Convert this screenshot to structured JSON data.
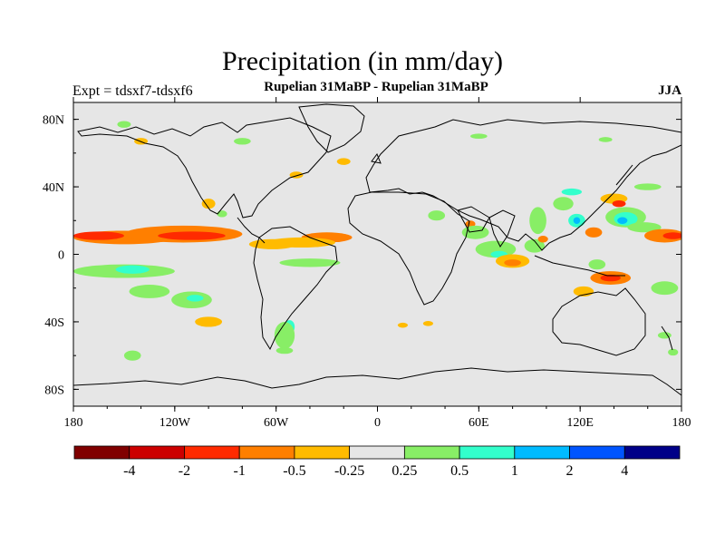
{
  "figure": {
    "title": "Precipitation (in mm/day)",
    "subtitle": "Rupelian  31MaBP - Rupelian  31MaBP",
    "experiment": "Expt = tdsxf7-tdsxf6",
    "season": "JJA"
  },
  "axes": {
    "x_ticks": [
      "180",
      "120W",
      "60W",
      "0",
      "60E",
      "120E",
      "180"
    ],
    "y_ticks": [
      "80N",
      "40N",
      "0",
      "40S",
      "80S"
    ],
    "lon_range": [
      -180,
      180
    ],
    "lat_range": [
      -90,
      90
    ]
  },
  "colorbar": {
    "labels": [
      "-4",
      "-2",
      "-1",
      "-0.5",
      "-0.25",
      "0.25",
      "0.5",
      "1",
      "2",
      "4"
    ],
    "colors": [
      "#800000",
      "#cc0000",
      "#ff2a00",
      "#ff7f00",
      "#ffbb00",
      "#e6e6e6",
      "#88ee66",
      "#33ffcc",
      "#00bbff",
      "#0055ff",
      "#000088"
    ]
  },
  "map": {
    "background": "#e6e6e6",
    "anomaly_regions": [
      {
        "lon": -150,
        "lat": 10,
        "rx": 30,
        "ry": 4,
        "color": "#ff7f00"
      },
      {
        "lon": -115,
        "lat": 12,
        "rx": 35,
        "ry": 5,
        "color": "#ff7f00"
      },
      {
        "lon": -110,
        "lat": 11,
        "rx": 20,
        "ry": 2.5,
        "color": "#ff2a00"
      },
      {
        "lon": -165,
        "lat": 11,
        "rx": 15,
        "ry": 2.5,
        "color": "#ff2a00"
      },
      {
        "lon": -150,
        "lat": -10,
        "rx": 30,
        "ry": 4,
        "color": "#88ee66"
      },
      {
        "lon": -145,
        "lat": -9,
        "rx": 10,
        "ry": 2.5,
        "color": "#33ffcc"
      },
      {
        "lon": -110,
        "lat": -27,
        "rx": 12,
        "ry": 5,
        "color": "#88ee66"
      },
      {
        "lon": -108,
        "lat": -26,
        "rx": 5,
        "ry": 2,
        "color": "#33ffcc"
      },
      {
        "lon": -100,
        "lat": -40,
        "rx": 8,
        "ry": 3,
        "color": "#ffbb00"
      },
      {
        "lon": -135,
        "lat": -22,
        "rx": 12,
        "ry": 4,
        "color": "#88ee66"
      },
      {
        "lon": -140,
        "lat": 67,
        "rx": 4,
        "ry": 2,
        "color": "#ffbb00"
      },
      {
        "lon": -62,
        "lat": 6,
        "rx": 14,
        "ry": 3,
        "color": "#ffbb00"
      },
      {
        "lon": -30,
        "lat": 10,
        "rx": 15,
        "ry": 3,
        "color": "#ff7f00"
      },
      {
        "lon": -45,
        "lat": 7,
        "rx": 20,
        "ry": 3,
        "color": "#ffbb00"
      },
      {
        "lon": -40,
        "lat": -5,
        "rx": 18,
        "ry": 2.5,
        "color": "#88ee66"
      },
      {
        "lon": -52,
        "lat": -43,
        "rx": 3,
        "ry": 4,
        "color": "#33ffcc"
      },
      {
        "lon": -55,
        "lat": -48,
        "rx": 6,
        "ry": 8,
        "color": "#88ee66"
      },
      {
        "lon": -145,
        "lat": -60,
        "rx": 5,
        "ry": 3,
        "color": "#88ee66"
      },
      {
        "lon": -55,
        "lat": -57,
        "rx": 5,
        "ry": 2,
        "color": "#88ee66"
      },
      {
        "lon": -48,
        "lat": 47,
        "rx": 4,
        "ry": 2,
        "color": "#ffbb00"
      },
      {
        "lon": -100,
        "lat": 30,
        "rx": 4,
        "ry": 3,
        "color": "#ffbb00"
      },
      {
        "lon": -92,
        "lat": 24,
        "rx": 3,
        "ry": 2,
        "color": "#88ee66"
      },
      {
        "lon": -80,
        "lat": 67,
        "rx": 5,
        "ry": 2,
        "color": "#88ee66"
      },
      {
        "lon": -20,
        "lat": 55,
        "rx": 4,
        "ry": 2,
        "color": "#ffbb00"
      },
      {
        "lon": 35,
        "lat": 23,
        "rx": 5,
        "ry": 3,
        "color": "#88ee66"
      },
      {
        "lon": 55,
        "lat": 18,
        "rx": 3,
        "ry": 2,
        "color": "#ff7f00"
      },
      {
        "lon": 58,
        "lat": 13,
        "rx": 8,
        "ry": 4,
        "color": "#88ee66"
      },
      {
        "lon": 70,
        "lat": 3,
        "rx": 12,
        "ry": 5,
        "color": "#88ee66"
      },
      {
        "lon": 72,
        "lat": 0,
        "rx": 5,
        "ry": 2,
        "color": "#33ffcc"
      },
      {
        "lon": 80,
        "lat": -4,
        "rx": 10,
        "ry": 4,
        "color": "#ffbb00"
      },
      {
        "lon": 80,
        "lat": -5,
        "rx": 5,
        "ry": 2,
        "color": "#ff7f00"
      },
      {
        "lon": 95,
        "lat": 20,
        "rx": 5,
        "ry": 8,
        "color": "#88ee66"
      },
      {
        "lon": 93,
        "lat": 5,
        "rx": 6,
        "ry": 4,
        "color": "#88ee66"
      },
      {
        "lon": 110,
        "lat": 30,
        "rx": 6,
        "ry": 4,
        "color": "#88ee66"
      },
      {
        "lon": 118,
        "lat": 20,
        "rx": 5,
        "ry": 4,
        "color": "#33ffcc"
      },
      {
        "lon": 118,
        "lat": 20,
        "rx": 2,
        "ry": 2,
        "color": "#00bbff"
      },
      {
        "lon": 115,
        "lat": 37,
        "rx": 6,
        "ry": 2,
        "color": "#33ffcc"
      },
      {
        "lon": 128,
        "lat": 13,
        "rx": 5,
        "ry": 3,
        "color": "#ff7f00"
      },
      {
        "lon": 140,
        "lat": 33,
        "rx": 8,
        "ry": 3,
        "color": "#ffbb00"
      },
      {
        "lon": 143,
        "lat": 30,
        "rx": 4,
        "ry": 2,
        "color": "#ff2a00"
      },
      {
        "lon": 147,
        "lat": 22,
        "rx": 12,
        "ry": 6,
        "color": "#88ee66"
      },
      {
        "lon": 147,
        "lat": 21,
        "rx": 7,
        "ry": 4,
        "color": "#33ffcc"
      },
      {
        "lon": 145,
        "lat": 20,
        "rx": 3,
        "ry": 2,
        "color": "#00bbff"
      },
      {
        "lon": 158,
        "lat": 16,
        "rx": 10,
        "ry": 3,
        "color": "#88ee66"
      },
      {
        "lon": 170,
        "lat": 11,
        "rx": 12,
        "ry": 4,
        "color": "#ff7f00"
      },
      {
        "lon": 175,
        "lat": 11,
        "rx": 6,
        "ry": 2,
        "color": "#ff2a00"
      },
      {
        "lon": 160,
        "lat": 40,
        "rx": 8,
        "ry": 2,
        "color": "#88ee66"
      },
      {
        "lon": 138,
        "lat": -14,
        "rx": 12,
        "ry": 4,
        "color": "#ff7f00"
      },
      {
        "lon": 138,
        "lat": -14,
        "rx": 6,
        "ry": 2,
        "color": "#ff2a00"
      },
      {
        "lon": 130,
        "lat": -6,
        "rx": 5,
        "ry": 3,
        "color": "#88ee66"
      },
      {
        "lon": 122,
        "lat": -22,
        "rx": 6,
        "ry": 3,
        "color": "#ffbb00"
      },
      {
        "lon": 170,
        "lat": -20,
        "rx": 8,
        "ry": 4,
        "color": "#88ee66"
      },
      {
        "lon": 98,
        "lat": 9,
        "rx": 3,
        "ry": 2,
        "color": "#ff7f00"
      },
      {
        "lon": 170,
        "lat": -48,
        "rx": 4,
        "ry": 2,
        "color": "#88ee66"
      },
      {
        "lon": 175,
        "lat": -58,
        "rx": 3,
        "ry": 2,
        "color": "#88ee66"
      },
      {
        "lon": 15,
        "lat": -42,
        "rx": 3,
        "ry": 1.5,
        "color": "#ffbb00"
      },
      {
        "lon": 30,
        "lat": -41,
        "rx": 3,
        "ry": 1.5,
        "color": "#ffbb00"
      },
      {
        "lon": -150,
        "lat": 77,
        "rx": 4,
        "ry": 2,
        "color": "#88ee66"
      },
      {
        "lon": 135,
        "lat": 68,
        "rx": 4,
        "ry": 1.5,
        "color": "#88ee66"
      },
      {
        "lon": 60,
        "lat": 70,
        "rx": 5,
        "ry": 1.5,
        "color": "#88ee66"
      }
    ]
  }
}
